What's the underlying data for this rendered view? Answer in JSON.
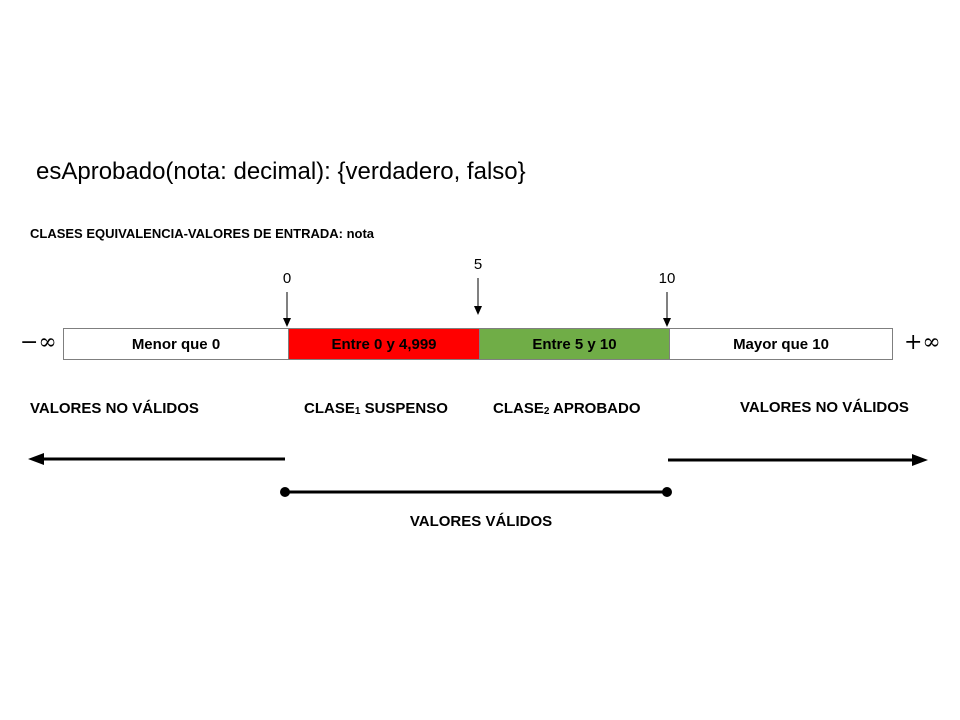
{
  "title": "esAprobado(nota: decimal): {verdadero, falso}",
  "subtitle": "CLASES EQUIVALENCIA-VALORES DE ENTRADA: nota",
  "ticks": [
    "0",
    "5",
    "10"
  ],
  "infinity": {
    "left": "−∞",
    "right": "+∞"
  },
  "segments": [
    {
      "label": "Menor que 0",
      "color": "#ffffff"
    },
    {
      "label": "Entre 0 y 4,999",
      "color": "#ff0000"
    },
    {
      "label": "Entre 5 y 10",
      "color": "#70ad47"
    },
    {
      "label": "Mayor que 10",
      "color": "#ffffff"
    }
  ],
  "classes": {
    "invalid_left": "VALORES NO VÁLIDOS",
    "class1_prefix": "CLASE",
    "class1_sub": "1",
    "class1_name": " SUSPENSO",
    "class2_prefix": "CLASE",
    "class2_sub": "2",
    "class2_name": " APROBADO",
    "invalid_right": "VALORES NO VÁLIDOS"
  },
  "valid_label": "VALORES VÁLIDOS"
}
